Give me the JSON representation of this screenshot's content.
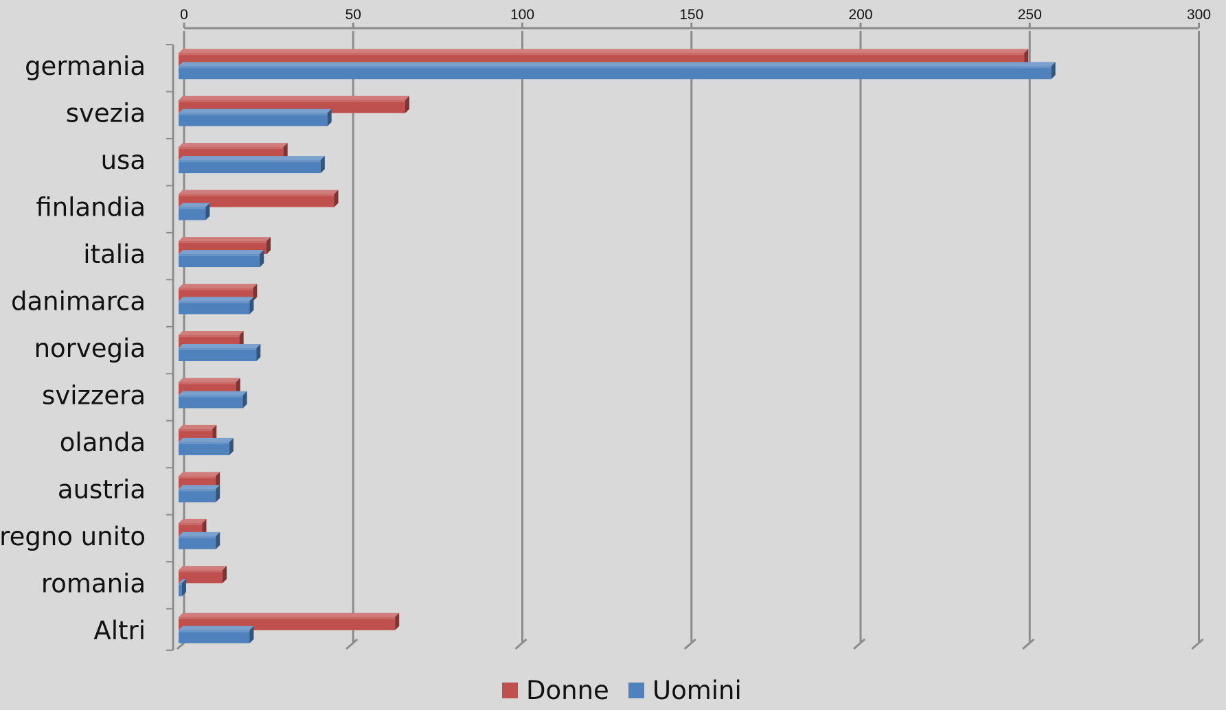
{
  "chart_data": {
    "type": "bar",
    "orientation": "horizontal",
    "three_d": true,
    "categories": [
      "germania",
      "svezia",
      "usa",
      "finlandia",
      "italia",
      "danimarca",
      "norvegia",
      "svizzera",
      "olanda",
      "austria",
      "regno unito",
      "romania",
      "Altri"
    ],
    "series": [
      {
        "name": "Donne",
        "color": "#c0504d",
        "values": [
          250,
          67,
          31,
          46,
          26,
          22,
          18,
          17,
          10,
          11,
          7,
          13,
          64
        ]
      },
      {
        "name": "Uomini",
        "color": "#4f81bd",
        "values": [
          258,
          44,
          42,
          8,
          24,
          21,
          23,
          19,
          15,
          11,
          11,
          1,
          21
        ]
      }
    ],
    "x_ticks": [
      "0",
      "50",
      "100",
      "150",
      "200",
      "250",
      "300"
    ],
    "xlim": [
      0,
      300
    ],
    "grid": true,
    "legend_position": "bottom"
  }
}
